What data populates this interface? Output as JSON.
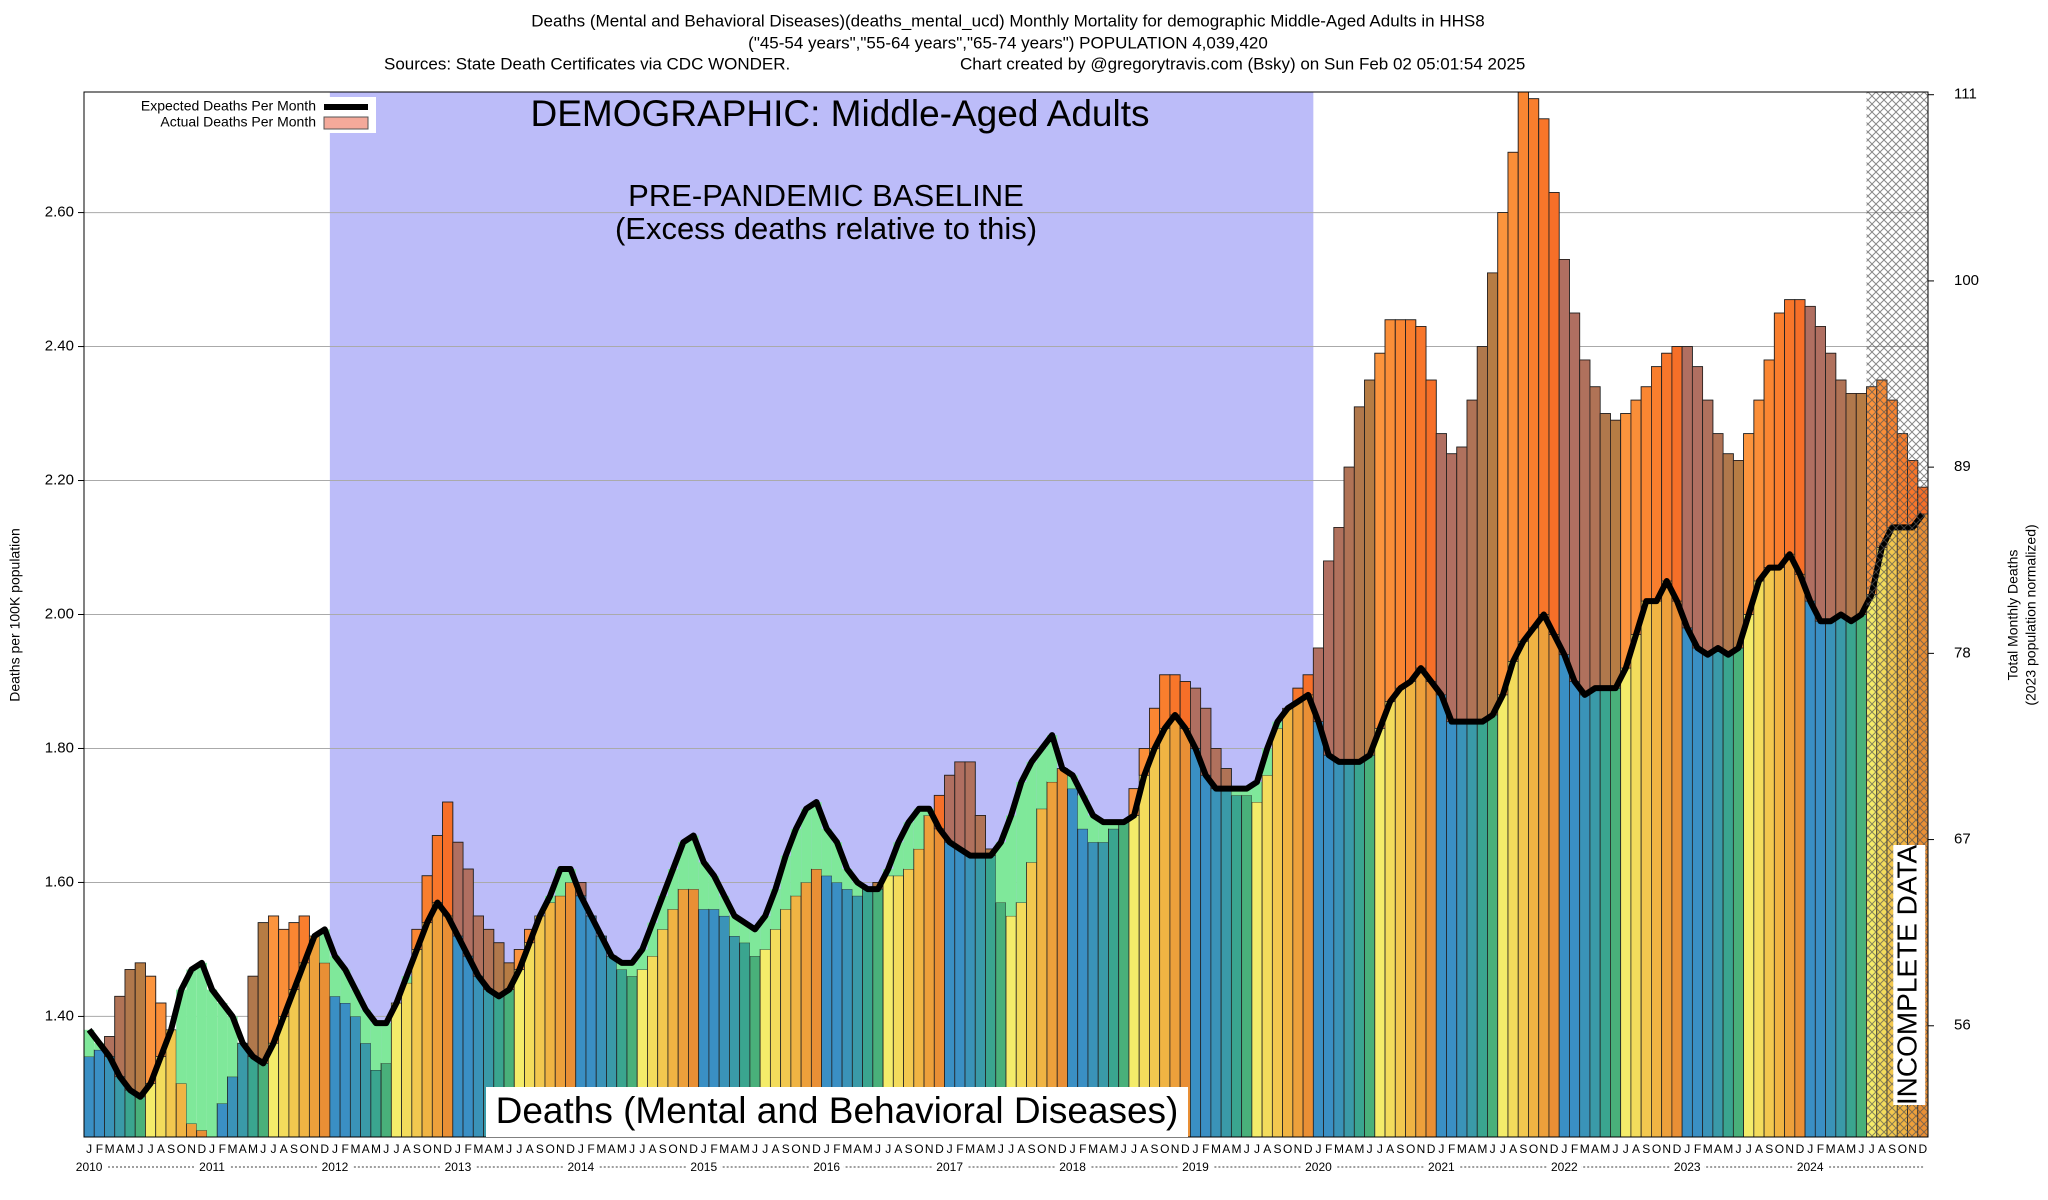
{
  "chart_data": {
    "type": "bar",
    "title": "Deaths (Mental and Behavioral Diseases)(deaths_mental_ucd) Monthly Mortality for demographic Middle-Aged Adults in HHS8",
    "subtitle": "(\"45-54 years\",\"55-64 years\",\"65-74 years\") POPULATION 4,039,420",
    "source": "Sources: State Death Certificates via CDC WONDER.",
    "credit": "Chart created by @gregorytravis.com (Bsky) on Sun Feb 02 05:01:54 2025",
    "demographic_label": "DEMOGRAPHIC: Middle-Aged Adults",
    "cause_label": "Deaths (Mental and Behavioral Diseases)",
    "baseline": {
      "label": "PRE-PANDEMIC BASELINE",
      "sublabel": "(Excess deaths relative to this)",
      "from": "2012-01",
      "to": "2019-12",
      "color": "#bcbcf9"
    },
    "incomplete": {
      "label": "INCOMPLETE DATA",
      "from": "2024-07"
    },
    "y_label": "Deaths per 100K population",
    "y2_label": "Total Monthly Deaths",
    "y2_sublabel": "(2023 population normalized)",
    "month_labels": [
      "J",
      "F",
      "M",
      "A",
      "M",
      "J",
      "J",
      "A",
      "S",
      "O",
      "N",
      "D"
    ],
    "years": [
      2010,
      2011,
      2012,
      2013,
      2014,
      2015,
      2016,
      2017,
      2018,
      2019,
      2020,
      2021,
      2022,
      2023,
      2024
    ],
    "month_colors": [
      "#3a8fc4",
      "#3a8fc4",
      "#3a93b8",
      "#3a9aa8",
      "#3aa58f",
      "#49b07a",
      "#f4ec6a",
      "#f3dc5c",
      "#f2c84f",
      "#f0b443",
      "#eda03b",
      "#e98f35"
    ],
    "excess_color": "#ff5a1f",
    "deficit_color": "#7fe89a",
    "x": [
      "2010-01",
      "2010-02",
      "2010-03",
      "2010-04",
      "2010-05",
      "2010-06",
      "2010-07",
      "2010-08",
      "2010-09",
      "2010-10",
      "2010-11",
      "2010-12",
      "2011-01",
      "2011-02",
      "2011-03",
      "2011-04",
      "2011-05",
      "2011-06",
      "2011-07",
      "2011-08",
      "2011-09",
      "2011-10",
      "2011-11",
      "2011-12",
      "2012-01",
      "2012-02",
      "2012-03",
      "2012-04",
      "2012-05",
      "2012-06",
      "2012-07",
      "2012-08",
      "2012-09",
      "2012-10",
      "2012-11",
      "2012-12",
      "2013-01",
      "2013-02",
      "2013-03",
      "2013-04",
      "2013-05",
      "2013-06",
      "2013-07",
      "2013-08",
      "2013-09",
      "2013-10",
      "2013-11",
      "2013-12",
      "2014-01",
      "2014-02",
      "2014-03",
      "2014-04",
      "2014-05",
      "2014-06",
      "2014-07",
      "2014-08",
      "2014-09",
      "2014-10",
      "2014-11",
      "2014-12",
      "2015-01",
      "2015-02",
      "2015-03",
      "2015-04",
      "2015-05",
      "2015-06",
      "2015-07",
      "2015-08",
      "2015-09",
      "2015-10",
      "2015-11",
      "2015-12",
      "2016-01",
      "2016-02",
      "2016-03",
      "2016-04",
      "2016-05",
      "2016-06",
      "2016-07",
      "2016-08",
      "2016-09",
      "2016-10",
      "2016-11",
      "2016-12",
      "2017-01",
      "2017-02",
      "2017-03",
      "2017-04",
      "2017-05",
      "2017-06",
      "2017-07",
      "2017-08",
      "2017-09",
      "2017-10",
      "2017-11",
      "2017-12",
      "2018-01",
      "2018-02",
      "2018-03",
      "2018-04",
      "2018-05",
      "2018-06",
      "2018-07",
      "2018-08",
      "2018-09",
      "2018-10",
      "2018-11",
      "2018-12",
      "2019-01",
      "2019-02",
      "2019-03",
      "2019-04",
      "2019-05",
      "2019-06",
      "2019-07",
      "2019-08",
      "2019-09",
      "2019-10",
      "2019-11",
      "2019-12",
      "2020-01",
      "2020-02",
      "2020-03",
      "2020-04",
      "2020-05",
      "2020-06",
      "2020-07",
      "2020-08",
      "2020-09",
      "2020-10",
      "2020-11",
      "2020-12",
      "2021-01",
      "2021-02",
      "2021-03",
      "2021-04",
      "2021-05",
      "2021-06",
      "2021-07",
      "2021-08",
      "2021-09",
      "2021-10",
      "2021-11",
      "2021-12",
      "2022-01",
      "2022-02",
      "2022-03",
      "2022-04",
      "2022-05",
      "2022-06",
      "2022-07",
      "2022-08",
      "2022-09",
      "2022-10",
      "2022-11",
      "2022-12",
      "2023-01",
      "2023-02",
      "2023-03",
      "2023-04",
      "2023-05",
      "2023-06",
      "2023-07",
      "2023-08",
      "2023-09",
      "2023-10",
      "2023-11",
      "2023-12",
      "2024-01",
      "2024-02",
      "2024-03",
      "2024-04",
      "2024-05",
      "2024-06",
      "2024-07",
      "2024-08",
      "2024-09",
      "2024-10",
      "2024-11",
      "2024-12"
    ],
    "series": [
      {
        "name": "Expected Deaths Per Month",
        "color": "#000000",
        "kind": "line",
        "values": [
          1.38,
          1.36,
          1.34,
          1.31,
          1.29,
          1.28,
          1.3,
          1.34,
          1.38,
          1.44,
          1.47,
          1.48,
          1.44,
          1.42,
          1.4,
          1.36,
          1.34,
          1.33,
          1.36,
          1.4,
          1.44,
          1.48,
          1.52,
          1.53,
          1.49,
          1.47,
          1.44,
          1.41,
          1.39,
          1.39,
          1.42,
          1.46,
          1.5,
          1.54,
          1.57,
          1.55,
          1.52,
          1.49,
          1.46,
          1.44,
          1.43,
          1.44,
          1.47,
          1.51,
          1.55,
          1.58,
          1.62,
          1.62,
          1.58,
          1.55,
          1.52,
          1.49,
          1.48,
          1.48,
          1.5,
          1.54,
          1.58,
          1.62,
          1.66,
          1.67,
          1.63,
          1.61,
          1.58,
          1.55,
          1.54,
          1.53,
          1.55,
          1.59,
          1.64,
          1.68,
          1.71,
          1.72,
          1.68,
          1.66,
          1.62,
          1.6,
          1.59,
          1.59,
          1.62,
          1.66,
          1.69,
          1.71,
          1.71,
          1.68,
          1.66,
          1.65,
          1.64,
          1.64,
          1.64,
          1.66,
          1.7,
          1.75,
          1.78,
          1.8,
          1.82,
          1.77,
          1.76,
          1.73,
          1.7,
          1.69,
          1.69,
          1.69,
          1.7,
          1.76,
          1.8,
          1.83,
          1.85,
          1.83,
          1.8,
          1.76,
          1.74,
          1.74,
          1.74,
          1.74,
          1.75,
          1.8,
          1.84,
          1.86,
          1.87,
          1.88,
          1.84,
          1.79,
          1.78,
          1.78,
          1.78,
          1.79,
          1.83,
          1.87,
          1.89,
          1.9,
          1.92,
          1.9,
          1.88,
          1.84,
          1.84,
          1.84,
          1.84,
          1.85,
          1.88,
          1.93,
          1.96,
          1.98,
          2.0,
          1.97,
          1.94,
          1.9,
          1.88,
          1.89,
          1.89,
          1.89,
          1.92,
          1.97,
          2.02,
          2.02,
          2.05,
          2.02,
          1.98,
          1.95,
          1.94,
          1.95,
          1.94,
          1.95,
          2.0,
          2.05,
          2.07,
          2.07,
          2.09,
          2.06,
          2.02,
          1.99,
          1.99,
          2.0,
          1.99,
          2.0,
          2.03,
          2.1,
          2.13,
          2.13,
          2.13,
          2.15
        ]
      },
      {
        "name": "Actual Deaths Per Month",
        "color": "#f4a99a",
        "kind": "bar",
        "values": [
          1.34,
          1.35,
          1.37,
          1.43,
          1.47,
          1.48,
          1.46,
          1.42,
          1.38,
          1.3,
          1.24,
          1.23,
          1.22,
          1.27,
          1.31,
          1.36,
          1.46,
          1.54,
          1.55,
          1.53,
          1.54,
          1.55,
          1.52,
          1.48,
          1.43,
          1.42,
          1.4,
          1.36,
          1.32,
          1.33,
          1.42,
          1.45,
          1.53,
          1.61,
          1.67,
          1.72,
          1.66,
          1.62,
          1.55,
          1.53,
          1.51,
          1.48,
          1.5,
          1.53,
          1.55,
          1.57,
          1.58,
          1.6,
          1.6,
          1.55,
          1.52,
          1.49,
          1.47,
          1.46,
          1.47,
          1.49,
          1.53,
          1.56,
          1.59,
          1.59,
          1.56,
          1.56,
          1.55,
          1.52,
          1.51,
          1.49,
          1.5,
          1.53,
          1.56,
          1.58,
          1.6,
          1.62,
          1.61,
          1.6,
          1.59,
          1.58,
          1.59,
          1.6,
          1.61,
          1.61,
          1.62,
          1.65,
          1.7,
          1.73,
          1.76,
          1.78,
          1.78,
          1.7,
          1.65,
          1.57,
          1.55,
          1.57,
          1.63,
          1.71,
          1.75,
          1.77,
          1.74,
          1.68,
          1.66,
          1.66,
          1.68,
          1.69,
          1.74,
          1.8,
          1.86,
          1.91,
          1.91,
          1.9,
          1.89,
          1.86,
          1.8,
          1.77,
          1.73,
          1.73,
          1.72,
          1.76,
          1.83,
          1.86,
          1.89,
          1.91,
          1.95,
          2.08,
          2.13,
          2.22,
          2.31,
          2.35,
          2.39,
          2.44,
          2.44,
          2.44,
          2.43,
          2.35,
          2.27,
          2.24,
          2.25,
          2.32,
          2.4,
          2.51,
          2.6,
          2.69,
          2.78,
          2.77,
          2.74,
          2.63,
          2.53,
          2.45,
          2.38,
          2.34,
          2.3,
          2.29,
          2.3,
          2.32,
          2.34,
          2.37,
          2.39,
          2.4,
          2.4,
          2.37,
          2.32,
          2.27,
          2.24,
          2.23,
          2.27,
          2.32,
          2.38,
          2.45,
          2.47,
          2.47,
          2.46,
          2.43,
          2.39,
          2.35,
          2.33,
          2.33,
          2.34,
          2.35,
          2.32,
          2.27,
          2.23,
          2.19
        ]
      }
    ],
    "ylim": [
      1.22,
      2.78
    ],
    "yticks": [
      {
        "value": 1.4,
        "label": "1.40"
      },
      {
        "value": 1.6,
        "label": "1.60"
      },
      {
        "value": 1.8,
        "label": "1.80"
      },
      {
        "value": 2.0,
        "label": "2.00"
      },
      {
        "value": 2.2,
        "label": "2.20"
      },
      {
        "value": 2.4,
        "label": "2.40"
      },
      {
        "value": 2.6,
        "label": "2.60"
      }
    ],
    "y2lim": [
      49.43,
      111.16
    ],
    "y2ticks": [
      56,
      67,
      78,
      89,
      100,
      111
    ],
    "grid": true
  }
}
